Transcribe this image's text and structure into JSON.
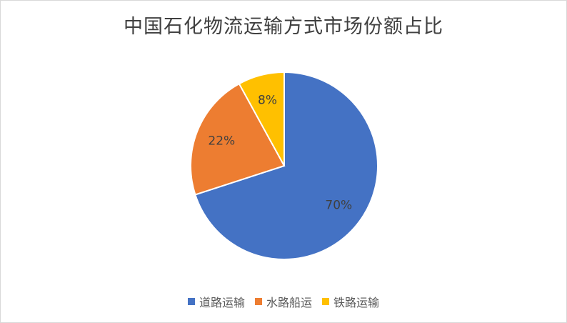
{
  "chart_data": {
    "type": "pie",
    "title": "中国石化物流运输方式市场份额占比",
    "unit": "%",
    "slices": [
      {
        "name": "道路运输",
        "value": 70,
        "label": "70%",
        "color": "#4472C4"
      },
      {
        "name": "水路船运",
        "value": 22,
        "label": "22%",
        "color": "#ED7D31"
      },
      {
        "name": "铁路运输",
        "value": 8,
        "label": "8%",
        "color": "#FFC000"
      }
    ],
    "start_angle": "12 o'clock",
    "direction": "clockwise",
    "legend_position": "bottom"
  }
}
